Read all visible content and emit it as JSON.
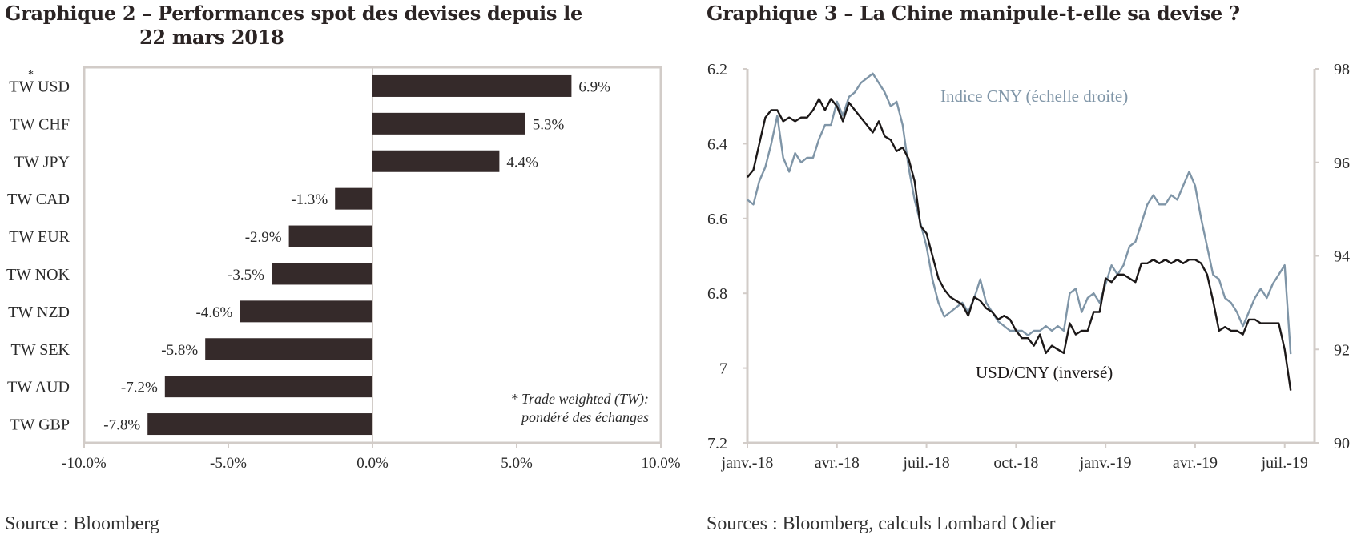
{
  "left_panel": {
    "title_line1": "Graphique 2 – Performances spot des devises depuis le",
    "title_line2": "22 mars 2018",
    "source": "Source : Bloomberg",
    "note_line1": "* Trade weighted (TW):",
    "note_line2": "pondéré des échanges",
    "usd_marker": "*"
  },
  "right_panel": {
    "title": "Graphique 3 – La Chine manipule-t-elle sa devise ?",
    "source": "Sources : Bloomberg, calculs Lombard Odier",
    "label_cny": "Indice CNY (échelle droite)",
    "label_usdcny": "USD/CNY (inversé)"
  },
  "colors": {
    "bar": "#352a2a",
    "frame": "#d2ccc8",
    "usdcny": "#1c1818",
    "cny": "#7f95a7",
    "axis": "#2b2b2b"
  },
  "chart_data": [
    {
      "type": "bar",
      "orientation": "horizontal",
      "categories": [
        "TW USD",
        "TW CHF",
        "TW JPY",
        "TW CAD",
        "TW EUR",
        "TW NOK",
        "TW NZD",
        "TW SEK",
        "TW AUD",
        "TW GBP"
      ],
      "values": [
        6.9,
        5.3,
        4.4,
        -1.3,
        -2.9,
        -3.5,
        -4.6,
        -5.8,
        -7.2,
        -7.8
      ],
      "value_labels": [
        "6.9%",
        "5.3%",
        "4.4%",
        "-1.3%",
        "-2.9%",
        "-3.5%",
        "-4.6%",
        "-5.8%",
        "-7.2%",
        "-7.8%"
      ],
      "xlim": [
        -10,
        10
      ],
      "xticks": [
        -10,
        -5,
        0,
        5,
        10
      ],
      "xtick_labels": [
        "-10.0%",
        "-5.0%",
        "0.0%",
        "5.0%",
        "10.0%"
      ]
    },
    {
      "type": "line",
      "x_range": [
        "2018-01",
        "2019-08"
      ],
      "xtick_labels": [
        "janv.-18",
        "avr.-18",
        "juil.-18",
        "oct.-18",
        "janv.-19",
        "avr.-19",
        "juil.-19"
      ],
      "xtick_months": [
        0,
        3,
        6,
        9,
        12,
        15,
        18
      ],
      "y_left": {
        "min": 6.2,
        "max": 7.2,
        "inverted": true,
        "ticks": [
          6.2,
          6.4,
          6.6,
          6.8,
          7,
          7.2
        ],
        "tick_labels": [
          "6.2",
          "6.4",
          "6.6",
          "6.8",
          "7",
          "7.2"
        ]
      },
      "y_right": {
        "min": 90,
        "max": 98,
        "ticks": [
          90,
          92,
          94,
          96,
          98
        ],
        "tick_labels": [
          "90",
          "92",
          "94",
          "96",
          "98"
        ]
      },
      "series": [
        {
          "name": "USD/CNY (inversé)",
          "axis": "left",
          "points": [
            [
              0,
              6.49
            ],
            [
              0.2,
              6.47
            ],
            [
              0.4,
              6.4
            ],
            [
              0.6,
              6.33
            ],
            [
              0.8,
              6.31
            ],
            [
              1.0,
              6.31
            ],
            [
              1.2,
              6.34
            ],
            [
              1.4,
              6.33
            ],
            [
              1.6,
              6.34
            ],
            [
              1.8,
              6.33
            ],
            [
              2.0,
              6.33
            ],
            [
              2.2,
              6.31
            ],
            [
              2.4,
              6.28
            ],
            [
              2.6,
              6.31
            ],
            [
              2.8,
              6.28
            ],
            [
              3.0,
              6.3
            ],
            [
              3.2,
              6.34
            ],
            [
              3.4,
              6.29
            ],
            [
              3.6,
              6.31
            ],
            [
              3.8,
              6.33
            ],
            [
              4.0,
              6.35
            ],
            [
              4.2,
              6.37
            ],
            [
              4.4,
              6.34
            ],
            [
              4.6,
              6.38
            ],
            [
              4.8,
              6.39
            ],
            [
              5.0,
              6.42
            ],
            [
              5.2,
              6.41
            ],
            [
              5.4,
              6.44
            ],
            [
              5.6,
              6.5
            ],
            [
              5.8,
              6.62
            ],
            [
              6.0,
              6.64
            ],
            [
              6.2,
              6.7
            ],
            [
              6.4,
              6.76
            ],
            [
              6.6,
              6.79
            ],
            [
              6.8,
              6.81
            ],
            [
              7.0,
              6.82
            ],
            [
              7.2,
              6.83
            ],
            [
              7.4,
              6.86
            ],
            [
              7.6,
              6.81
            ],
            [
              7.8,
              6.82
            ],
            [
              8.0,
              6.84
            ],
            [
              8.2,
              6.85
            ],
            [
              8.4,
              6.87
            ],
            [
              8.6,
              6.86
            ],
            [
              8.8,
              6.87
            ],
            [
              9.0,
              6.9
            ],
            [
              9.2,
              6.92
            ],
            [
              9.4,
              6.92
            ],
            [
              9.6,
              6.94
            ],
            [
              9.8,
              6.91
            ],
            [
              10.0,
              6.96
            ],
            [
              10.2,
              6.94
            ],
            [
              10.4,
              6.95
            ],
            [
              10.6,
              6.96
            ],
            [
              10.8,
              6.88
            ],
            [
              11.0,
              6.91
            ],
            [
              11.2,
              6.9
            ],
            [
              11.4,
              6.9
            ],
            [
              11.6,
              6.85
            ],
            [
              11.8,
              6.85
            ],
            [
              12.0,
              6.76
            ],
            [
              12.2,
              6.77
            ],
            [
              12.4,
              6.75
            ],
            [
              12.6,
              6.75
            ],
            [
              12.8,
              6.76
            ],
            [
              13.0,
              6.77
            ],
            [
              13.2,
              6.72
            ],
            [
              13.4,
              6.72
            ],
            [
              13.6,
              6.71
            ],
            [
              13.8,
              6.72
            ],
            [
              14.0,
              6.71
            ],
            [
              14.2,
              6.72
            ],
            [
              14.4,
              6.71
            ],
            [
              14.6,
              6.72
            ],
            [
              14.8,
              6.71
            ],
            [
              15.0,
              6.71
            ],
            [
              15.2,
              6.72
            ],
            [
              15.4,
              6.75
            ],
            [
              15.6,
              6.82
            ],
            [
              15.8,
              6.9
            ],
            [
              16.0,
              6.89
            ],
            [
              16.2,
              6.9
            ],
            [
              16.4,
              6.9
            ],
            [
              16.6,
              6.91
            ],
            [
              16.8,
              6.87
            ],
            [
              17.0,
              6.87
            ],
            [
              17.2,
              6.88
            ],
            [
              17.4,
              6.88
            ],
            [
              17.6,
              6.88
            ],
            [
              17.8,
              6.88
            ],
            [
              18.0,
              6.95
            ],
            [
              18.2,
              7.06
            ]
          ]
        },
        {
          "name": "Indice CNY (échelle droite)",
          "axis": "right",
          "points": [
            [
              0,
              95.2
            ],
            [
              0.2,
              95.1
            ],
            [
              0.4,
              95.6
            ],
            [
              0.6,
              95.9
            ],
            [
              0.8,
              96.4
            ],
            [
              1.0,
              97.0
            ],
            [
              1.2,
              96.1
            ],
            [
              1.4,
              95.8
            ],
            [
              1.6,
              96.2
            ],
            [
              1.8,
              96.0
            ],
            [
              2.0,
              96.1
            ],
            [
              2.2,
              96.1
            ],
            [
              2.4,
              96.5
            ],
            [
              2.6,
              96.8
            ],
            [
              2.8,
              96.8
            ],
            [
              3.0,
              97.3
            ],
            [
              3.2,
              97.0
            ],
            [
              3.4,
              97.4
            ],
            [
              3.6,
              97.5
            ],
            [
              3.8,
              97.7
            ],
            [
              4.0,
              97.8
            ],
            [
              4.2,
              97.9
            ],
            [
              4.4,
              97.7
            ],
            [
              4.6,
              97.5
            ],
            [
              4.8,
              97.2
            ],
            [
              5.0,
              97.3
            ],
            [
              5.2,
              96.8
            ],
            [
              5.4,
              95.9
            ],
            [
              5.6,
              95.2
            ],
            [
              5.8,
              94.7
            ],
            [
              6.0,
              94.2
            ],
            [
              6.2,
              93.5
            ],
            [
              6.4,
              93.0
            ],
            [
              6.6,
              92.7
            ],
            [
              6.8,
              92.8
            ],
            [
              7.0,
              92.9
            ],
            [
              7.2,
              93.0
            ],
            [
              7.4,
              92.8
            ],
            [
              7.6,
              93.1
            ],
            [
              7.8,
              93.5
            ],
            [
              8.0,
              93.0
            ],
            [
              8.2,
              92.8
            ],
            [
              8.4,
              92.6
            ],
            [
              8.6,
              92.5
            ],
            [
              8.8,
              92.4
            ],
            [
              9.0,
              92.4
            ],
            [
              9.2,
              92.4
            ],
            [
              9.4,
              92.3
            ],
            [
              9.6,
              92.4
            ],
            [
              9.8,
              92.4
            ],
            [
              10.0,
              92.5
            ],
            [
              10.2,
              92.4
            ],
            [
              10.4,
              92.5
            ],
            [
              10.6,
              92.4
            ],
            [
              10.8,
              93.2
            ],
            [
              11.0,
              93.3
            ],
            [
              11.2,
              92.8
            ],
            [
              11.4,
              93.1
            ],
            [
              11.6,
              93.2
            ],
            [
              11.8,
              93.0
            ],
            [
              12.0,
              93.4
            ],
            [
              12.2,
              93.8
            ],
            [
              12.4,
              93.6
            ],
            [
              12.6,
              93.8
            ],
            [
              12.8,
              94.2
            ],
            [
              13.0,
              94.3
            ],
            [
              13.2,
              94.7
            ],
            [
              13.4,
              95.1
            ],
            [
              13.6,
              95.3
            ],
            [
              13.8,
              95.1
            ],
            [
              14.0,
              95.1
            ],
            [
              14.2,
              95.3
            ],
            [
              14.4,
              95.2
            ],
            [
              14.6,
              95.5
            ],
            [
              14.8,
              95.8
            ],
            [
              15.0,
              95.5
            ],
            [
              15.2,
              94.8
            ],
            [
              15.6,
              93.6
            ],
            [
              15.8,
              93.5
            ],
            [
              16.0,
              93.1
            ],
            [
              16.2,
              93.0
            ],
            [
              16.4,
              92.8
            ],
            [
              16.6,
              92.5
            ],
            [
              16.8,
              92.8
            ],
            [
              17.0,
              93.1
            ],
            [
              17.2,
              93.3
            ],
            [
              17.4,
              93.1
            ],
            [
              17.6,
              93.4
            ],
            [
              17.8,
              93.6
            ],
            [
              18.0,
              93.8
            ],
            [
              18.2,
              91.9
            ]
          ]
        }
      ]
    }
  ]
}
